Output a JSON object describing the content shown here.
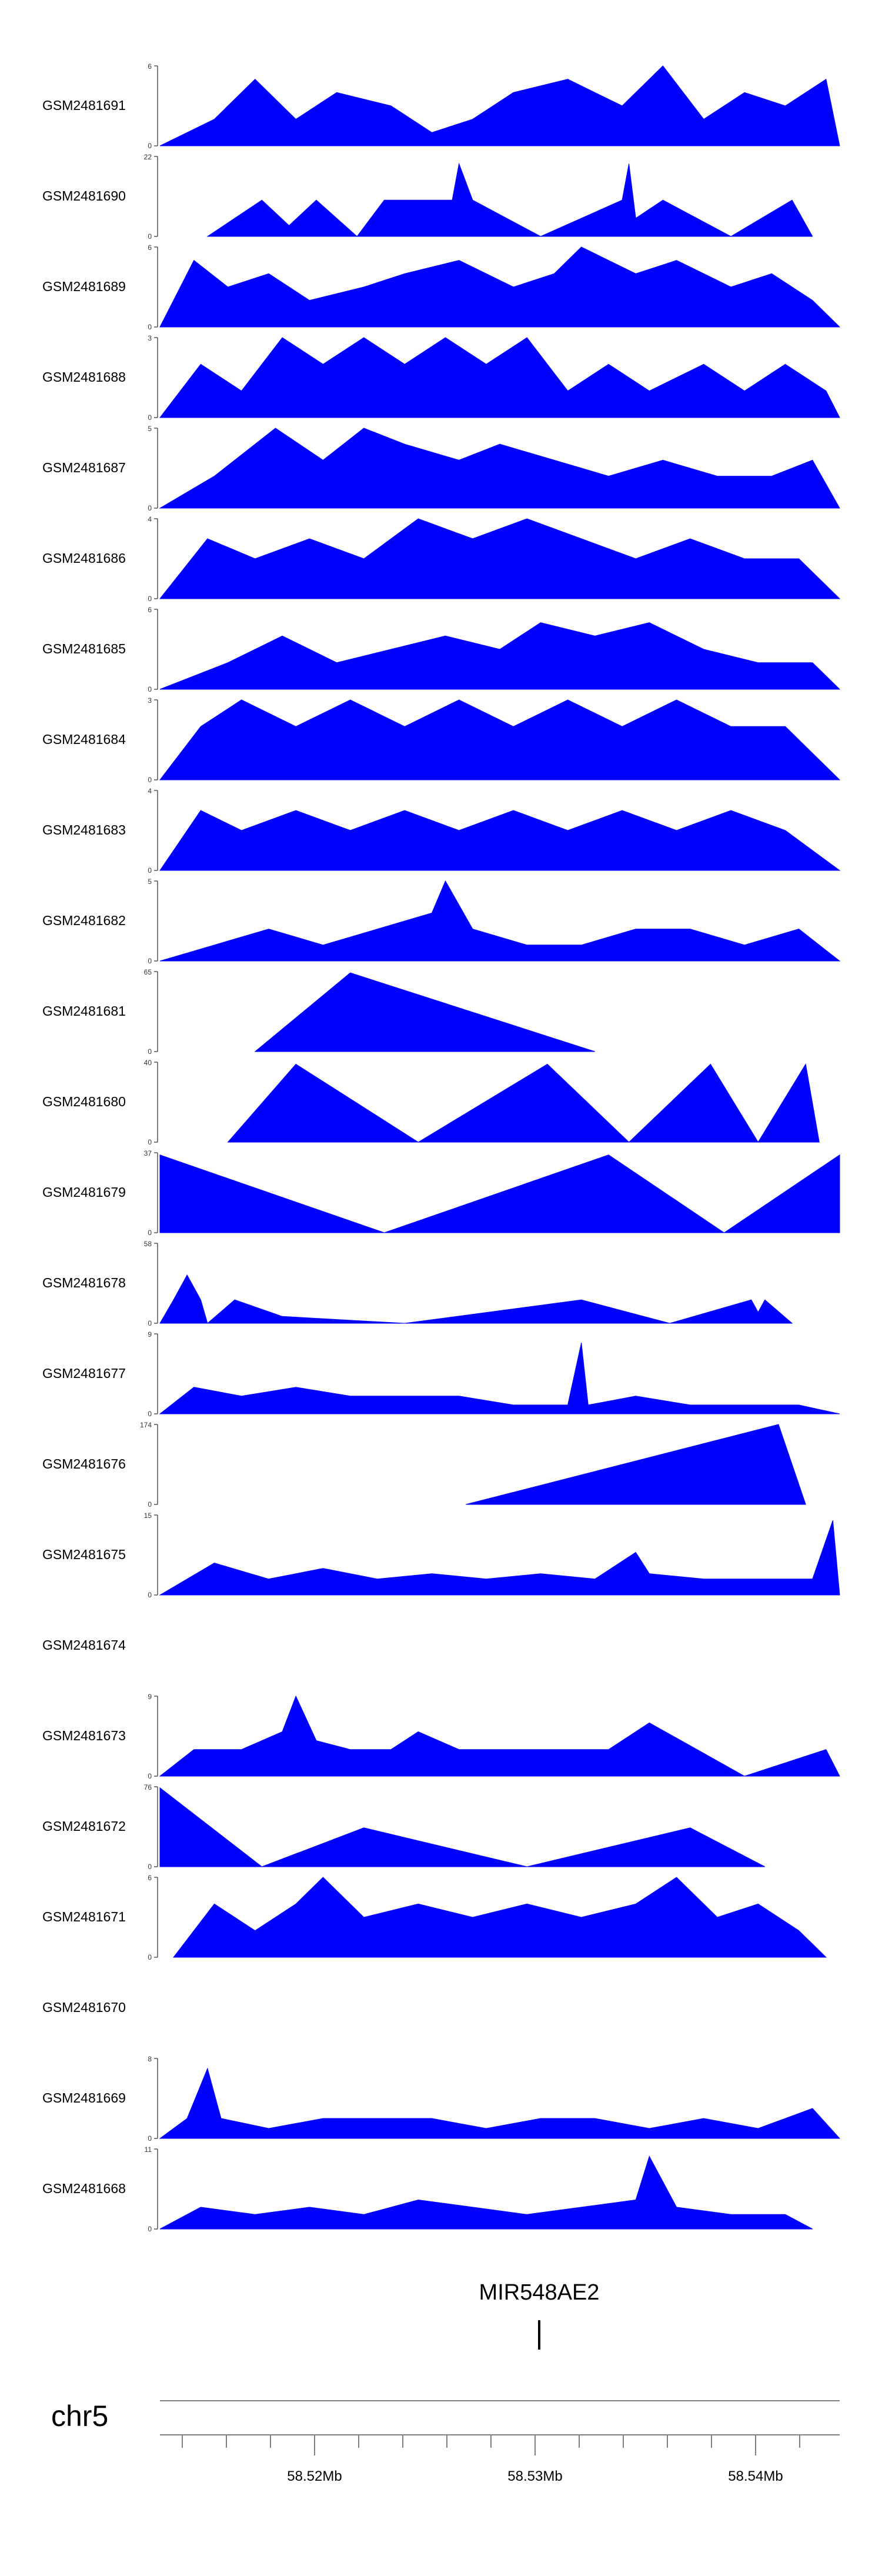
{
  "chart_data": {
    "type": "area",
    "chromosome": "chr5",
    "gene": "MIR548AE2",
    "x_ticks": [
      "58.52Mb",
      "58.53Mb",
      "58.54Mb"
    ],
    "series": [
      {
        "name": "GSM2481691",
        "ymax": 6,
        "points": [
          [
            0.0,
            0
          ],
          [
            0.08,
            2
          ],
          [
            0.14,
            5
          ],
          [
            0.2,
            2
          ],
          [
            0.26,
            4
          ],
          [
            0.34,
            3
          ],
          [
            0.4,
            1
          ],
          [
            0.46,
            2
          ],
          [
            0.52,
            4
          ],
          [
            0.6,
            5
          ],
          [
            0.68,
            3
          ],
          [
            0.74,
            6
          ],
          [
            0.8,
            2
          ],
          [
            0.86,
            4
          ],
          [
            0.92,
            3
          ],
          [
            0.98,
            5
          ],
          [
            1.0,
            0
          ]
        ]
      },
      {
        "name": "GSM2481690",
        "ymax": 22,
        "points": [
          [
            0.07,
            0
          ],
          [
            0.15,
            10
          ],
          [
            0.19,
            3
          ],
          [
            0.23,
            10
          ],
          [
            0.29,
            0
          ],
          [
            0.33,
            10
          ],
          [
            0.36,
            10
          ],
          [
            0.39,
            10
          ],
          [
            0.43,
            10
          ],
          [
            0.44,
            20
          ],
          [
            0.46,
            10
          ],
          [
            0.56,
            0
          ],
          [
            0.68,
            10
          ],
          [
            0.69,
            20
          ],
          [
            0.7,
            5
          ],
          [
            0.74,
            10
          ],
          [
            0.84,
            0
          ],
          [
            0.93,
            10
          ],
          [
            0.96,
            0
          ]
        ]
      },
      {
        "name": "GSM2481689",
        "ymax": 6,
        "points": [
          [
            0.0,
            0
          ],
          [
            0.05,
            5
          ],
          [
            0.1,
            3
          ],
          [
            0.16,
            4
          ],
          [
            0.22,
            2
          ],
          [
            0.3,
            3
          ],
          [
            0.36,
            4
          ],
          [
            0.44,
            5
          ],
          [
            0.52,
            3
          ],
          [
            0.58,
            4
          ],
          [
            0.62,
            6
          ],
          [
            0.7,
            4
          ],
          [
            0.76,
            5
          ],
          [
            0.84,
            3
          ],
          [
            0.9,
            4
          ],
          [
            0.96,
            2
          ],
          [
            1.0,
            0
          ]
        ]
      },
      {
        "name": "GSM2481688",
        "ymax": 3,
        "points": [
          [
            0.0,
            0
          ],
          [
            0.06,
            2
          ],
          [
            0.12,
            1
          ],
          [
            0.18,
            3
          ],
          [
            0.24,
            2
          ],
          [
            0.3,
            3
          ],
          [
            0.36,
            2
          ],
          [
            0.42,
            3
          ],
          [
            0.48,
            2
          ],
          [
            0.54,
            3
          ],
          [
            0.6,
            1
          ],
          [
            0.66,
            2
          ],
          [
            0.72,
            1
          ],
          [
            0.8,
            2
          ],
          [
            0.86,
            1
          ],
          [
            0.92,
            2
          ],
          [
            0.98,
            1
          ],
          [
            1.0,
            0
          ]
        ]
      },
      {
        "name": "GSM2481687",
        "ymax": 5,
        "points": [
          [
            0.0,
            0
          ],
          [
            0.08,
            2
          ],
          [
            0.17,
            5
          ],
          [
            0.24,
            3
          ],
          [
            0.3,
            5
          ],
          [
            0.36,
            4
          ],
          [
            0.44,
            3
          ],
          [
            0.5,
            4
          ],
          [
            0.58,
            3
          ],
          [
            0.66,
            2
          ],
          [
            0.74,
            3
          ],
          [
            0.82,
            2
          ],
          [
            0.9,
            2
          ],
          [
            0.96,
            3
          ],
          [
            1.0,
            0
          ]
        ]
      },
      {
        "name": "GSM2481686",
        "ymax": 4,
        "points": [
          [
            0.0,
            0
          ],
          [
            0.07,
            3
          ],
          [
            0.14,
            2
          ],
          [
            0.22,
            3
          ],
          [
            0.3,
            2
          ],
          [
            0.38,
            4
          ],
          [
            0.46,
            3
          ],
          [
            0.54,
            4
          ],
          [
            0.62,
            3
          ],
          [
            0.7,
            2
          ],
          [
            0.78,
            3
          ],
          [
            0.86,
            2
          ],
          [
            0.94,
            2
          ],
          [
            1.0,
            0
          ]
        ]
      },
      {
        "name": "GSM2481685",
        "ymax": 6,
        "points": [
          [
            0.0,
            0
          ],
          [
            0.1,
            2
          ],
          [
            0.18,
            4
          ],
          [
            0.26,
            2
          ],
          [
            0.34,
            3
          ],
          [
            0.42,
            4
          ],
          [
            0.5,
            3
          ],
          [
            0.56,
            5
          ],
          [
            0.64,
            4
          ],
          [
            0.72,
            5
          ],
          [
            0.8,
            3
          ],
          [
            0.88,
            2
          ],
          [
            0.96,
            2
          ],
          [
            1.0,
            0
          ]
        ]
      },
      {
        "name": "GSM2481684",
        "ymax": 3,
        "points": [
          [
            0.0,
            0
          ],
          [
            0.06,
            2
          ],
          [
            0.12,
            3
          ],
          [
            0.2,
            2
          ],
          [
            0.28,
            3
          ],
          [
            0.36,
            2
          ],
          [
            0.44,
            3
          ],
          [
            0.52,
            2
          ],
          [
            0.6,
            3
          ],
          [
            0.68,
            2
          ],
          [
            0.76,
            3
          ],
          [
            0.84,
            2
          ],
          [
            0.92,
            2
          ],
          [
            1.0,
            0
          ]
        ]
      },
      {
        "name": "GSM2481683",
        "ymax": 4,
        "points": [
          [
            0.0,
            0
          ],
          [
            0.06,
            3
          ],
          [
            0.12,
            2
          ],
          [
            0.2,
            3
          ],
          [
            0.28,
            2
          ],
          [
            0.36,
            3
          ],
          [
            0.44,
            2
          ],
          [
            0.52,
            3
          ],
          [
            0.6,
            2
          ],
          [
            0.68,
            3
          ],
          [
            0.76,
            2
          ],
          [
            0.84,
            3
          ],
          [
            0.92,
            2
          ],
          [
            1.0,
            0
          ]
        ]
      },
      {
        "name": "GSM2481682",
        "ymax": 5,
        "points": [
          [
            0.0,
            0
          ],
          [
            0.08,
            1
          ],
          [
            0.16,
            2
          ],
          [
            0.24,
            1
          ],
          [
            0.32,
            2
          ],
          [
            0.4,
            3
          ],
          [
            0.42,
            5
          ],
          [
            0.46,
            2
          ],
          [
            0.54,
            1
          ],
          [
            0.62,
            1
          ],
          [
            0.7,
            2
          ],
          [
            0.78,
            2
          ],
          [
            0.86,
            1
          ],
          [
            0.94,
            2
          ],
          [
            1.0,
            0
          ]
        ]
      },
      {
        "name": "GSM2481681",
        "ymax": 65,
        "points": [
          [
            0.14,
            0
          ],
          [
            0.28,
            64
          ],
          [
            0.64,
            0
          ]
        ]
      },
      {
        "name": "GSM2481680",
        "ymax": 40,
        "points": [
          [
            0.1,
            0
          ],
          [
            0.2,
            39
          ],
          [
            0.38,
            0
          ],
          [
            0.57,
            39
          ],
          [
            0.69,
            0
          ],
          [
            0.81,
            39
          ],
          [
            0.88,
            0
          ],
          [
            0.95,
            39
          ],
          [
            0.97,
            0
          ]
        ]
      },
      {
        "name": "GSM2481679",
        "ymax": 37,
        "points": [
          [
            0.0,
            0
          ],
          [
            0.0,
            36
          ],
          [
            0.33,
            0
          ],
          [
            0.66,
            36
          ],
          [
            0.83,
            0
          ],
          [
            1.0,
            36
          ],
          [
            1.0,
            0
          ]
        ]
      },
      {
        "name": "GSM2481678",
        "ymax": 58,
        "points": [
          [
            0.0,
            0
          ],
          [
            0.02,
            17
          ],
          [
            0.04,
            35
          ],
          [
            0.06,
            17
          ],
          [
            0.07,
            0
          ],
          [
            0.11,
            17
          ],
          [
            0.18,
            5
          ],
          [
            0.36,
            0
          ],
          [
            0.62,
            17
          ],
          [
            0.75,
            0
          ],
          [
            0.87,
            17
          ],
          [
            0.88,
            8
          ],
          [
            0.89,
            17
          ],
          [
            0.93,
            0
          ]
        ]
      },
      {
        "name": "GSM2481677",
        "ymax": 9,
        "points": [
          [
            0.0,
            0
          ],
          [
            0.05,
            3
          ],
          [
            0.12,
            2
          ],
          [
            0.2,
            3
          ],
          [
            0.28,
            2
          ],
          [
            0.36,
            2
          ],
          [
            0.44,
            2
          ],
          [
            0.52,
            1
          ],
          [
            0.6,
            1
          ],
          [
            0.62,
            8
          ],
          [
            0.63,
            1
          ],
          [
            0.7,
            2
          ],
          [
            0.78,
            1
          ],
          [
            0.86,
            1
          ],
          [
            0.94,
            1
          ],
          [
            1.0,
            0
          ]
        ]
      },
      {
        "name": "GSM2481676",
        "ymax": 174,
        "points": [
          [
            0.45,
            0
          ],
          [
            0.91,
            174
          ],
          [
            0.95,
            0
          ]
        ]
      },
      {
        "name": "GSM2481675",
        "ymax": 15,
        "points": [
          [
            0.0,
            0
          ],
          [
            0.08,
            6
          ],
          [
            0.16,
            3
          ],
          [
            0.24,
            5
          ],
          [
            0.32,
            3
          ],
          [
            0.4,
            4
          ],
          [
            0.48,
            3
          ],
          [
            0.56,
            4
          ],
          [
            0.64,
            3
          ],
          [
            0.7,
            8
          ],
          [
            0.72,
            4
          ],
          [
            0.8,
            3
          ],
          [
            0.88,
            3
          ],
          [
            0.96,
            3
          ],
          [
            0.99,
            14
          ],
          [
            1.0,
            0
          ]
        ]
      },
      {
        "name": "GSM2481674",
        "ymax": null,
        "points": []
      },
      {
        "name": "GSM2481673",
        "ymax": 9,
        "points": [
          [
            0.0,
            0
          ],
          [
            0.05,
            3
          ],
          [
            0.12,
            3
          ],
          [
            0.18,
            5
          ],
          [
            0.2,
            9
          ],
          [
            0.23,
            4
          ],
          [
            0.28,
            3
          ],
          [
            0.34,
            3
          ],
          [
            0.38,
            5
          ],
          [
            0.44,
            3
          ],
          [
            0.52,
            3
          ],
          [
            0.58,
            3
          ],
          [
            0.66,
            3
          ],
          [
            0.72,
            6
          ],
          [
            0.86,
            0
          ],
          [
            0.98,
            3
          ],
          [
            1.0,
            0
          ]
        ]
      },
      {
        "name": "GSM2481672",
        "ymax": 76,
        "points": [
          [
            0.0,
            0
          ],
          [
            0.0,
            75
          ],
          [
            0.15,
            0
          ],
          [
            0.3,
            37
          ],
          [
            0.54,
            0
          ],
          [
            0.78,
            37
          ],
          [
            0.89,
            0
          ]
        ]
      },
      {
        "name": "GSM2481671",
        "ymax": 6,
        "points": [
          [
            0.02,
            0
          ],
          [
            0.08,
            4
          ],
          [
            0.14,
            2
          ],
          [
            0.2,
            4
          ],
          [
            0.24,
            6
          ],
          [
            0.3,
            3
          ],
          [
            0.38,
            4
          ],
          [
            0.46,
            3
          ],
          [
            0.54,
            4
          ],
          [
            0.62,
            3
          ],
          [
            0.7,
            4
          ],
          [
            0.76,
            6
          ],
          [
            0.82,
            3
          ],
          [
            0.88,
            4
          ],
          [
            0.94,
            2
          ],
          [
            0.98,
            0
          ]
        ]
      },
      {
        "name": "GSM2481670",
        "ymax": null,
        "points": []
      },
      {
        "name": "GSM2481669",
        "ymax": 8,
        "points": [
          [
            0.0,
            0
          ],
          [
            0.04,
            2
          ],
          [
            0.07,
            7
          ],
          [
            0.09,
            2
          ],
          [
            0.16,
            1
          ],
          [
            0.24,
            2
          ],
          [
            0.32,
            2
          ],
          [
            0.4,
            2
          ],
          [
            0.48,
            1
          ],
          [
            0.56,
            2
          ],
          [
            0.64,
            2
          ],
          [
            0.72,
            1
          ],
          [
            0.8,
            2
          ],
          [
            0.88,
            1
          ],
          [
            0.96,
            3
          ],
          [
            1.0,
            0
          ]
        ]
      },
      {
        "name": "GSM2481668",
        "ymax": 11,
        "points": [
          [
            0.0,
            0
          ],
          [
            0.06,
            3
          ],
          [
            0.14,
            2
          ],
          [
            0.22,
            3
          ],
          [
            0.3,
            2
          ],
          [
            0.38,
            4
          ],
          [
            0.46,
            3
          ],
          [
            0.54,
            2
          ],
          [
            0.62,
            3
          ],
          [
            0.7,
            4
          ],
          [
            0.72,
            10
          ],
          [
            0.76,
            3
          ],
          [
            0.84,
            2
          ],
          [
            0.92,
            2
          ],
          [
            0.96,
            0
          ]
        ]
      }
    ]
  }
}
